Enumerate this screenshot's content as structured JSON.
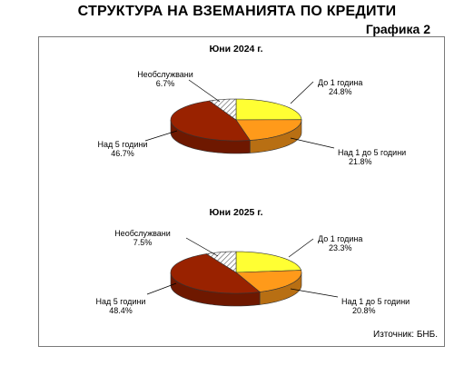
{
  "header": {
    "title": "СТРУКТУРА НА ВЗЕМАНИЯТА ПО КРЕДИТИ",
    "figure_label": "Графика 2"
  },
  "source": "Източник:  БНБ.",
  "colors": {
    "up_to_1_year": "#ffff33",
    "1_to_5_years": "#ff9a1a",
    "over_5_years": "#992200",
    "non_performing": "#ffffff"
  },
  "chart_data": [
    {
      "type": "pie",
      "title": "Юни 2024 г.",
      "slices": [
        {
          "label": "До 1 година",
          "value": 24.8,
          "value_label": "24.8%",
          "color": "#ffff33"
        },
        {
          "label": "Над 1 до 5 години",
          "value": 21.8,
          "value_label": "21.8%",
          "color": "#ff9a1a"
        },
        {
          "label": "Над 5 години",
          "value": 46.7,
          "value_label": "46.7%",
          "color": "#992200"
        },
        {
          "label": "Необслужвани",
          "value": 6.7,
          "value_label": "6.7%",
          "color": "#ffffff",
          "pattern": "hatched"
        }
      ]
    },
    {
      "type": "pie",
      "title": "Юни 2025 г.",
      "slices": [
        {
          "label": "До 1 година",
          "value": 23.3,
          "value_label": "23.3%",
          "color": "#ffff33"
        },
        {
          "label": "Над 1 до 5 години",
          "value": 20.8,
          "value_label": "20.8%",
          "color": "#ff9a1a"
        },
        {
          "label": "Над 5 години",
          "value": 48.4,
          "value_label": "48.4%",
          "color": "#992200"
        },
        {
          "label": "Необслужвани",
          "value": 7.5,
          "value_label": "7.5%",
          "color": "#ffffff",
          "pattern": "hatched"
        }
      ]
    }
  ]
}
